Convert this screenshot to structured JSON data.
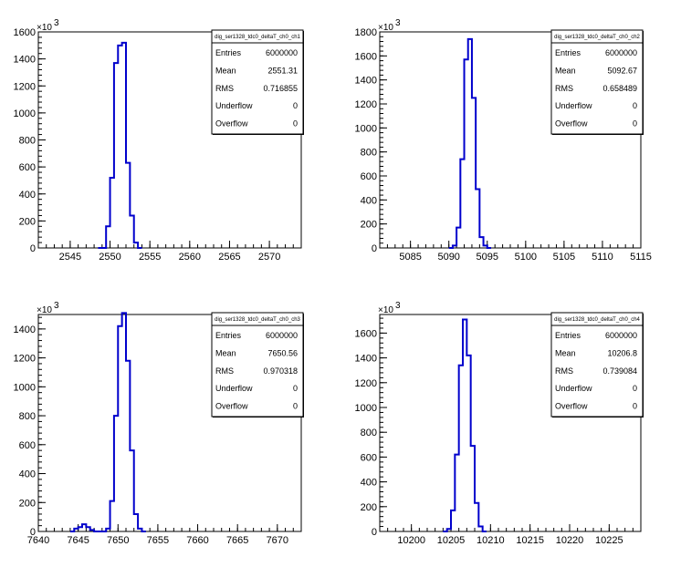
{
  "chart_data": [
    {
      "type": "histogram",
      "stats_title": "dig_ser1328_tdc0_deltaT_ch0_ch1",
      "stats": [
        {
          "label": "Entries",
          "value": "6000000"
        },
        {
          "label": "Mean",
          "value": "2551.31"
        },
        {
          "label": "RMS",
          "value": "0.716855"
        },
        {
          "label": "Underflow",
          "value": "0"
        },
        {
          "label": "Overflow",
          "value": "0"
        }
      ],
      "y_exponent_base": "×10",
      "y_exponent": "3",
      "xlim": [
        2541,
        2574
      ],
      "ylim": [
        0,
        1600
      ],
      "xticks": [
        2545,
        2550,
        2555,
        2560,
        2565,
        2570
      ],
      "yticks": [
        0,
        200,
        400,
        600,
        800,
        1000,
        1200,
        1400,
        1600
      ],
      "bin_width": 0.5,
      "bins": [
        {
          "x": 2548.5,
          "y": 0
        },
        {
          "x": 2549,
          "y": 0
        },
        {
          "x": 2549.5,
          "y": 160
        },
        {
          "x": 2550,
          "y": 520
        },
        {
          "x": 2550.5,
          "y": 1370
        },
        {
          "x": 2551,
          "y": 1500
        },
        {
          "x": 2551.5,
          "y": 1520
        },
        {
          "x": 2552,
          "y": 630
        },
        {
          "x": 2552.5,
          "y": 240
        },
        {
          "x": 2553,
          "y": 40
        },
        {
          "x": 2553.5,
          "y": 0
        }
      ]
    },
    {
      "type": "histogram",
      "stats_title": "dig_ser1328_tdc0_deltaT_ch0_ch2",
      "stats": [
        {
          "label": "Entries",
          "value": "6000000"
        },
        {
          "label": "Mean",
          "value": "5092.67"
        },
        {
          "label": "RMS",
          "value": "0.658489"
        },
        {
          "label": "Underflow",
          "value": "0"
        },
        {
          "label": "Overflow",
          "value": "0"
        }
      ],
      "y_exponent_base": "×10",
      "y_exponent": "3",
      "xlim": [
        5081,
        5115
      ],
      "ylim": [
        0,
        1800
      ],
      "xticks": [
        5085,
        5090,
        5095,
        5100,
        5105,
        5110,
        5115
      ],
      "yticks": [
        0,
        200,
        400,
        600,
        800,
        1000,
        1200,
        1400,
        1600,
        1800
      ],
      "bin_width": 0.5,
      "bins": [
        {
          "x": 5090,
          "y": 0
        },
        {
          "x": 5090.5,
          "y": 20
        },
        {
          "x": 5091,
          "y": 170
        },
        {
          "x": 5091.5,
          "y": 740
        },
        {
          "x": 5092,
          "y": 1570
        },
        {
          "x": 5092.5,
          "y": 1740
        },
        {
          "x": 5093,
          "y": 1250
        },
        {
          "x": 5093.5,
          "y": 490
        },
        {
          "x": 5094,
          "y": 90
        },
        {
          "x": 5094.5,
          "y": 20
        },
        {
          "x": 5095,
          "y": 0
        }
      ]
    },
    {
      "type": "histogram",
      "stats_title": "dig_ser1328_tdc0_deltaT_ch0_ch3",
      "stats": [
        {
          "label": "Entries",
          "value": "6000000"
        },
        {
          "label": "Mean",
          "value": "7650.56"
        },
        {
          "label": "RMS",
          "value": "0.970318"
        },
        {
          "label": "Underflow",
          "value": "0"
        },
        {
          "label": "Overflow",
          "value": "0"
        }
      ],
      "y_exponent_base": "×10",
      "y_exponent": "3",
      "xlim": [
        7640,
        7673
      ],
      "ylim": [
        0,
        1500
      ],
      "xticks": [
        7640,
        7645,
        7650,
        7655,
        7660,
        7665,
        7670
      ],
      "yticks": [
        0,
        200,
        400,
        600,
        800,
        1000,
        1200,
        1400
      ],
      "bin_width": 0.5,
      "bins": [
        {
          "x": 7644,
          "y": 0
        },
        {
          "x": 7644.5,
          "y": 20
        },
        {
          "x": 7645,
          "y": 30
        },
        {
          "x": 7645.5,
          "y": 50
        },
        {
          "x": 7646,
          "y": 30
        },
        {
          "x": 7646.5,
          "y": 10
        },
        {
          "x": 7647,
          "y": 0
        },
        {
          "x": 7648,
          "y": 0
        },
        {
          "x": 7648.5,
          "y": 20
        },
        {
          "x": 7649,
          "y": 210
        },
        {
          "x": 7649.5,
          "y": 800
        },
        {
          "x": 7650,
          "y": 1420
        },
        {
          "x": 7650.5,
          "y": 1510
        },
        {
          "x": 7651,
          "y": 1180
        },
        {
          "x": 7651.5,
          "y": 560
        },
        {
          "x": 7652,
          "y": 120
        },
        {
          "x": 7652.5,
          "y": 20
        },
        {
          "x": 7653,
          "y": 0
        }
      ]
    },
    {
      "type": "histogram",
      "stats_title": "dig_ser1328_tdc0_deltaT_ch0_ch4",
      "stats": [
        {
          "label": "Entries",
          "value": "6000000"
        },
        {
          "label": "Mean",
          "value": "10206.8"
        },
        {
          "label": "RMS",
          "value": "0.739084"
        },
        {
          "label": "Underflow",
          "value": "0"
        },
        {
          "label": "Overflow",
          "value": "0"
        }
      ],
      "y_exponent_base": "×10",
      "y_exponent": "3",
      "xlim": [
        10196,
        10229
      ],
      "ylim": [
        0,
        1750
      ],
      "xticks": [
        10200,
        10205,
        10210,
        10215,
        10220,
        10225
      ],
      "yticks": [
        0,
        200,
        400,
        600,
        800,
        1000,
        1200,
        1400,
        1600
      ],
      "bin_width": 0.5,
      "bins": [
        {
          "x": 10204,
          "y": 0
        },
        {
          "x": 10204.5,
          "y": 20
        },
        {
          "x": 10205,
          "y": 170
        },
        {
          "x": 10205.5,
          "y": 620
        },
        {
          "x": 10206,
          "y": 1340
        },
        {
          "x": 10206.5,
          "y": 1710
        },
        {
          "x": 10207,
          "y": 1420
        },
        {
          "x": 10207.5,
          "y": 690
        },
        {
          "x": 10208,
          "y": 230
        },
        {
          "x": 10208.5,
          "y": 40
        },
        {
          "x": 10209,
          "y": 0
        }
      ]
    }
  ]
}
